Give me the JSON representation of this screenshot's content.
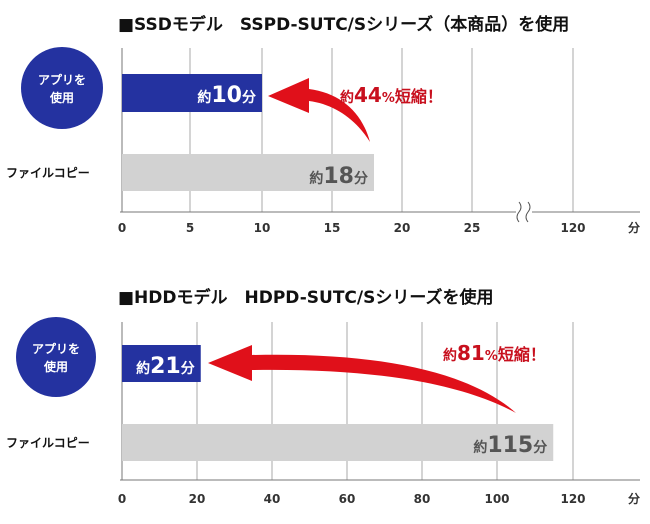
{
  "colors": {
    "app_bar": "#2432a0",
    "copy_bar": "#d2d2d2",
    "arrow": "#e0101a",
    "callout_text": "#c8101e",
    "circle": "#2432a0",
    "grid": "#999999"
  },
  "chart_data": [
    {
      "type": "bar",
      "title": "■SSDモデル　SSPD-SUTC/Sシリーズ（本商品）を使用",
      "categories": [
        "アプリを使用",
        "ファイルコピー"
      ],
      "series_label_circle": [
        "アプリを",
        "使用"
      ],
      "values": [
        10,
        18
      ],
      "value_labels": [
        {
          "prefix": "約",
          "num": "10",
          "unit": "分"
        },
        {
          "prefix": "約",
          "num": "18",
          "unit": "分"
        }
      ],
      "x_ticks": [
        "0",
        "5",
        "10",
        "15",
        "20",
        "25",
        "120",
        "分"
      ],
      "x_tick_values": [
        0,
        5,
        10,
        15,
        20,
        25,
        120
      ],
      "xlim": [
        0,
        120
      ],
      "axis_break": true,
      "grid": true,
      "callout": {
        "prefix": "約",
        "num": "44",
        "pct": "%",
        "suffix": "短縮！"
      }
    },
    {
      "type": "bar",
      "title": "■HDDモデル　HDPD-SUTC/Sシリーズを使用",
      "categories": [
        "アプリを使用",
        "ファイルコピー"
      ],
      "series_label_circle": [
        "アプリを",
        "使用"
      ],
      "values": [
        21,
        115
      ],
      "value_labels": [
        {
          "prefix": "約",
          "num": "21",
          "unit": "分"
        },
        {
          "prefix": "約",
          "num": "115",
          "unit": "分"
        }
      ],
      "x_ticks": [
        "0",
        "20",
        "40",
        "60",
        "80",
        "100",
        "120",
        "分"
      ],
      "x_tick_values": [
        0,
        20,
        40,
        60,
        80,
        100,
        120
      ],
      "xlim": [
        0,
        120
      ],
      "axis_break": false,
      "grid": true,
      "callout": {
        "prefix": "約",
        "num": "81",
        "pct": "%",
        "suffix": "短縮！"
      }
    }
  ]
}
